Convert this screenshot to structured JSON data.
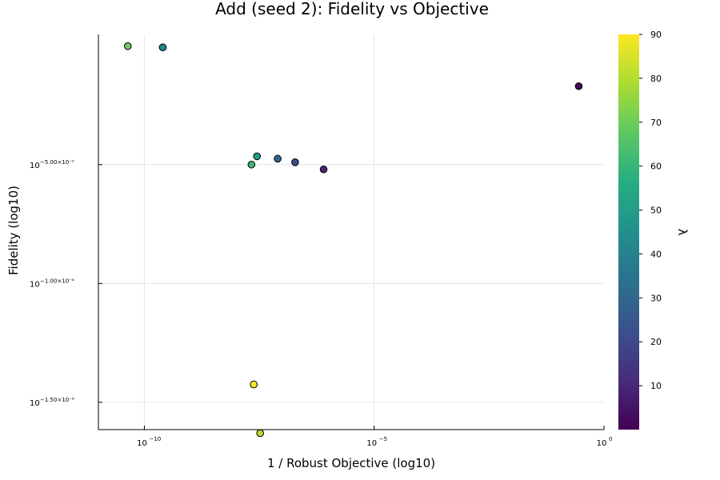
{
  "chart_data": {
    "type": "scatter",
    "title": "Add (seed 2): Fidelity vs Objective",
    "xlabel": "1 / Robust Objective (log10)",
    "ylabel": "Fidelity (log10)",
    "colorbar_label": "λ",
    "colormap": "viridis",
    "x_scale": "log10",
    "y_scale": "log10",
    "x_ticks": [
      {
        "base": "10",
        "exp": "−10",
        "log10": -10
      },
      {
        "base": "10",
        "exp": "−5",
        "log10": -5
      },
      {
        "base": "10",
        "exp": "0",
        "log10": 0
      }
    ],
    "y_ticks": [
      {
        "base": "10",
        "exp": "−5.00×10⁻⁹",
        "log10": -5e-09
      },
      {
        "base": "10",
        "exp": "−1.00×10⁻⁸",
        "log10": -1e-08
      },
      {
        "base": "10",
        "exp": "−1.50×10⁻⁸",
        "log10": -1.5e-08
      }
    ],
    "xlim_log10": [
      -11,
      0
    ],
    "ylim_log10": [
      -1.615e-08,
      4.8e-10
    ],
    "colorbar_ticks": [
      "10",
      "20",
      "30",
      "40",
      "50",
      "60",
      "70",
      "80",
      "90"
    ],
    "clim": [
      0,
      90
    ],
    "grid": true,
    "points": [
      {
        "x_log10": -10.36,
        "y_log10": -1.5e-11,
        "lambda": 70
      },
      {
        "x_log10": -9.6,
        "y_log10": -6.5e-11,
        "lambda": 40
      },
      {
        "x_log10": -0.55,
        "y_log10": -1.7e-09,
        "lambda": 1
      },
      {
        "x_log10": -7.55,
        "y_log10": -4.65e-09,
        "lambda": 50
      },
      {
        "x_log10": -7.67,
        "y_log10": -5e-09,
        "lambda": 60
      },
      {
        "x_log10": -7.1,
        "y_log10": -4.75e-09,
        "lambda": 30
      },
      {
        "x_log10": -6.72,
        "y_log10": -4.9e-09,
        "lambda": 20
      },
      {
        "x_log10": -6.1,
        "y_log10": -5.2e-09,
        "lambda": 10
      },
      {
        "x_log10": -7.62,
        "y_log10": -1.425e-08,
        "lambda": 90
      },
      {
        "x_log10": -7.48,
        "y_log10": -1.63e-08,
        "lambda": 80
      }
    ]
  }
}
